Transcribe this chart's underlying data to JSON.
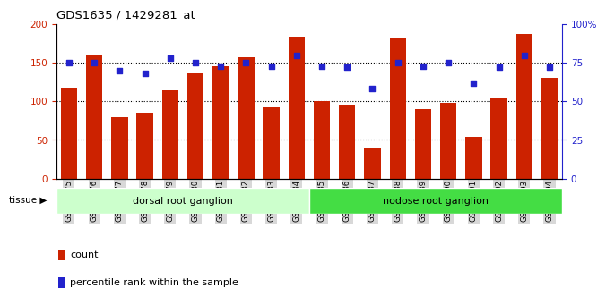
{
  "title": "GDS1635 / 1429281_at",
  "samples": [
    "GSM63675",
    "GSM63676",
    "GSM63677",
    "GSM63678",
    "GSM63679",
    "GSM63680",
    "GSM63681",
    "GSM63682",
    "GSM63683",
    "GSM63684",
    "GSM63685",
    "GSM63686",
    "GSM63687",
    "GSM63688",
    "GSM63689",
    "GSM63690",
    "GSM63691",
    "GSM63692",
    "GSM63693",
    "GSM63694"
  ],
  "counts": [
    118,
    161,
    80,
    85,
    114,
    136,
    145,
    157,
    92,
    184,
    100,
    96,
    40,
    181,
    90,
    98,
    54,
    104,
    187,
    130
  ],
  "percentiles": [
    75,
    75,
    70,
    68,
    78,
    75,
    73,
    75,
    73,
    80,
    73,
    72,
    58,
    75,
    73,
    75,
    62,
    72,
    80,
    72
  ],
  "tissue_groups": [
    {
      "label": "dorsal root ganglion",
      "start": 0,
      "end": 10,
      "color": "#CCFFCC"
    },
    {
      "label": "nodose root ganglion",
      "start": 10,
      "end": 20,
      "color": "#44DD44"
    }
  ],
  "bar_color": "#CC2200",
  "dot_color": "#2222CC",
  "left_axis_color": "#CC2200",
  "right_axis_color": "#2222CC",
  "ylim_left": [
    0,
    200
  ],
  "ylim_right": [
    0,
    100
  ],
  "yticks_left": [
    0,
    50,
    100,
    150,
    200
  ],
  "yticks_right": [
    0,
    25,
    50,
    75,
    100
  ],
  "ytick_labels_right": [
    "0",
    "25",
    "50",
    "75",
    "100%"
  ],
  "gridline_y": [
    50,
    100,
    150
  ],
  "xtick_bg": "#D8D8D8",
  "legend_items": [
    {
      "label": "count",
      "color": "#CC2200"
    },
    {
      "label": "percentile rank within the sample",
      "color": "#2222CC"
    }
  ]
}
